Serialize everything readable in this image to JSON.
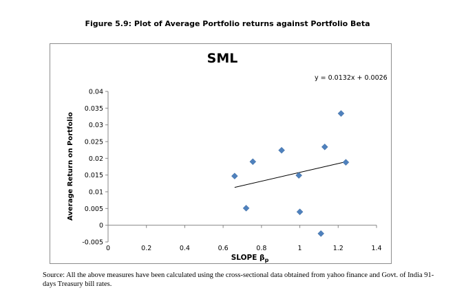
{
  "figure": {
    "caption": "Figure 5.9: Plot of Average Portfolio returns against Portfolio Beta",
    "source_note": "Source: All the above measures have been calculated  using the cross-sectional data obtained from yahoo finance and Govt. of India 91-days Treasury bill rates."
  },
  "chart_data": {
    "type": "scatter",
    "title": "SML",
    "xlabel": "SLOPE βp",
    "xlabel_main": "SLOPE β",
    "xlabel_sub": "p",
    "ylabel": "Average Return on Portfolio",
    "xlim": [
      0,
      1.4
    ],
    "ylim": [
      -0.005,
      0.04
    ],
    "x_ticks": [
      "0",
      "0.2",
      "0.4",
      "0.6",
      "0.8",
      "1",
      "1.2",
      "1.4"
    ],
    "y_ticks": [
      "-0.005",
      "0",
      "0.005",
      "0.01",
      "0.015",
      "0.02",
      "0.025",
      "0.03",
      "0.035",
      "0.04"
    ],
    "grid": false,
    "legend": "none",
    "marker_color": "#4f81bd",
    "points": [
      {
        "x": 0.66,
        "y": 0.0147
      },
      {
        "x": 0.72,
        "y": 0.0051
      },
      {
        "x": 0.755,
        "y": 0.019
      },
      {
        "x": 0.905,
        "y": 0.0224
      },
      {
        "x": 0.995,
        "y": 0.0149
      },
      {
        "x": 1.0,
        "y": 0.004
      },
      {
        "x": 1.11,
        "y": -0.0025
      },
      {
        "x": 1.13,
        "y": 0.0234
      },
      {
        "x": 1.215,
        "y": 0.0334
      },
      {
        "x": 1.24,
        "y": 0.0188
      }
    ],
    "trendline": {
      "equation": "y = 0.0132x + 0.0026",
      "slope": 0.0132,
      "intercept": 0.0026,
      "x_start": 0.66,
      "x_end": 1.24
    }
  }
}
